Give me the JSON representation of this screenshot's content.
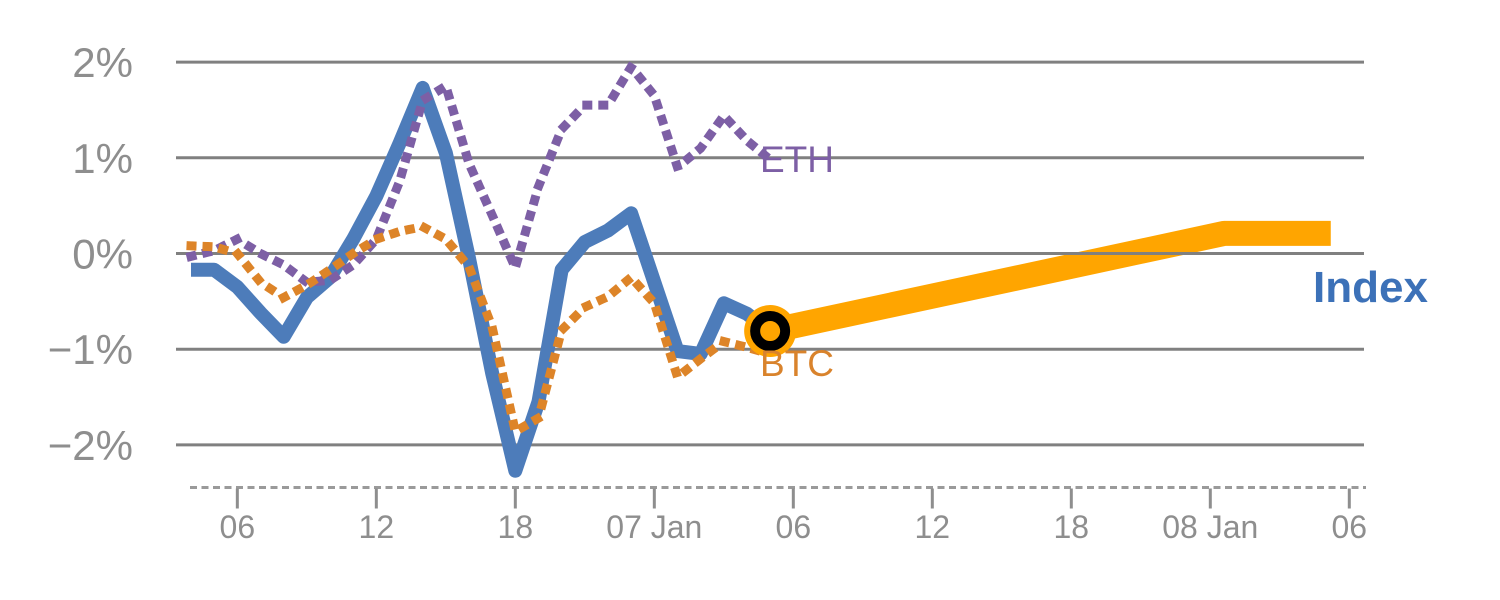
{
  "chart_data": {
    "type": "line",
    "title": "",
    "description": "Daily percent returns of ETH, BTC and a crypto Index with an orange forecast band extending the Index forward",
    "x_axis": {
      "tick_labels": [
        "06",
        "12",
        "18",
        "07 Jan",
        "06",
        "12",
        "18",
        "08 Jan",
        "06"
      ],
      "tick_day_indices": [
        2,
        8,
        14,
        20,
        26,
        32,
        38,
        44,
        50
      ],
      "grid": false
    },
    "y_axis": {
      "tick_labels": [
        "2%",
        "1%",
        "0%",
        "−1%",
        "−2%"
      ],
      "tick_values": [
        2,
        1,
        0,
        -1,
        -2
      ],
      "ylim": [
        -2.5,
        2.4
      ],
      "grid": true
    },
    "series": [
      {
        "name": "Index",
        "style": "solid",
        "color": "#4D7CBA",
        "values": [
          -0.17,
          -0.17,
          -0.35,
          -0.62,
          -0.87,
          -0.46,
          -0.25,
          0.15,
          0.6,
          1.15,
          1.73,
          1.05,
          -0.05,
          -1.25,
          -2.27,
          -1.55,
          -0.17,
          0.12,
          0.24,
          0.42,
          -0.3,
          -1.02,
          -1.05,
          -0.52,
          -0.63,
          -0.82
        ]
      },
      {
        "name": "ETH",
        "style": "dotted",
        "color": "#7D5FA5",
        "values": [
          -0.03,
          0.03,
          0.15,
          0.0,
          -0.12,
          -0.3,
          -0.28,
          -0.12,
          0.15,
          0.75,
          1.6,
          1.75,
          0.94,
          0.4,
          -0.15,
          0.7,
          1.3,
          1.55,
          1.55,
          1.95,
          1.65,
          0.9,
          1.1,
          1.44,
          1.18,
          0.98
        ]
      },
      {
        "name": "BTC",
        "style": "dotted",
        "color": "#DD8428",
        "values": [
          0.08,
          0.07,
          0.0,
          -0.3,
          -0.46,
          -0.33,
          -0.17,
          0.0,
          0.15,
          0.23,
          0.28,
          0.15,
          -0.14,
          -0.77,
          -1.86,
          -1.72,
          -0.8,
          -0.56,
          -0.45,
          -0.25,
          -0.52,
          -1.29,
          -1.1,
          -0.92,
          -0.98,
          -1.05
        ]
      }
    ],
    "projection": {
      "name": "Index forecast",
      "color": "#FFA500",
      "points": [
        {
          "i": 25,
          "v": -0.81
        },
        {
          "i": 44.6,
          "v": 0.21
        },
        {
          "i": 49.2,
          "v": 0.21
        }
      ]
    },
    "marker": {
      "i": 25,
      "v": -0.81,
      "ring_color": "#000000",
      "fill_color": "#FFA500"
    },
    "legend_position": "inline-end-of-line"
  },
  "labels": {
    "eth": "ETH",
    "btc": "BTC",
    "index": "Index"
  },
  "colors": {
    "index_line": "#4D7CBA",
    "index_label": "#3C71B8",
    "eth": "#7D5FA5",
    "btc_dots": "#DD8428",
    "btc_label": "#D9832C",
    "forecast_band": "#FFA500",
    "gridline": "#808080",
    "axis_text": "#8E8E8E",
    "axis_line": "#9A9A9A",
    "background": "#FFFFFF"
  }
}
